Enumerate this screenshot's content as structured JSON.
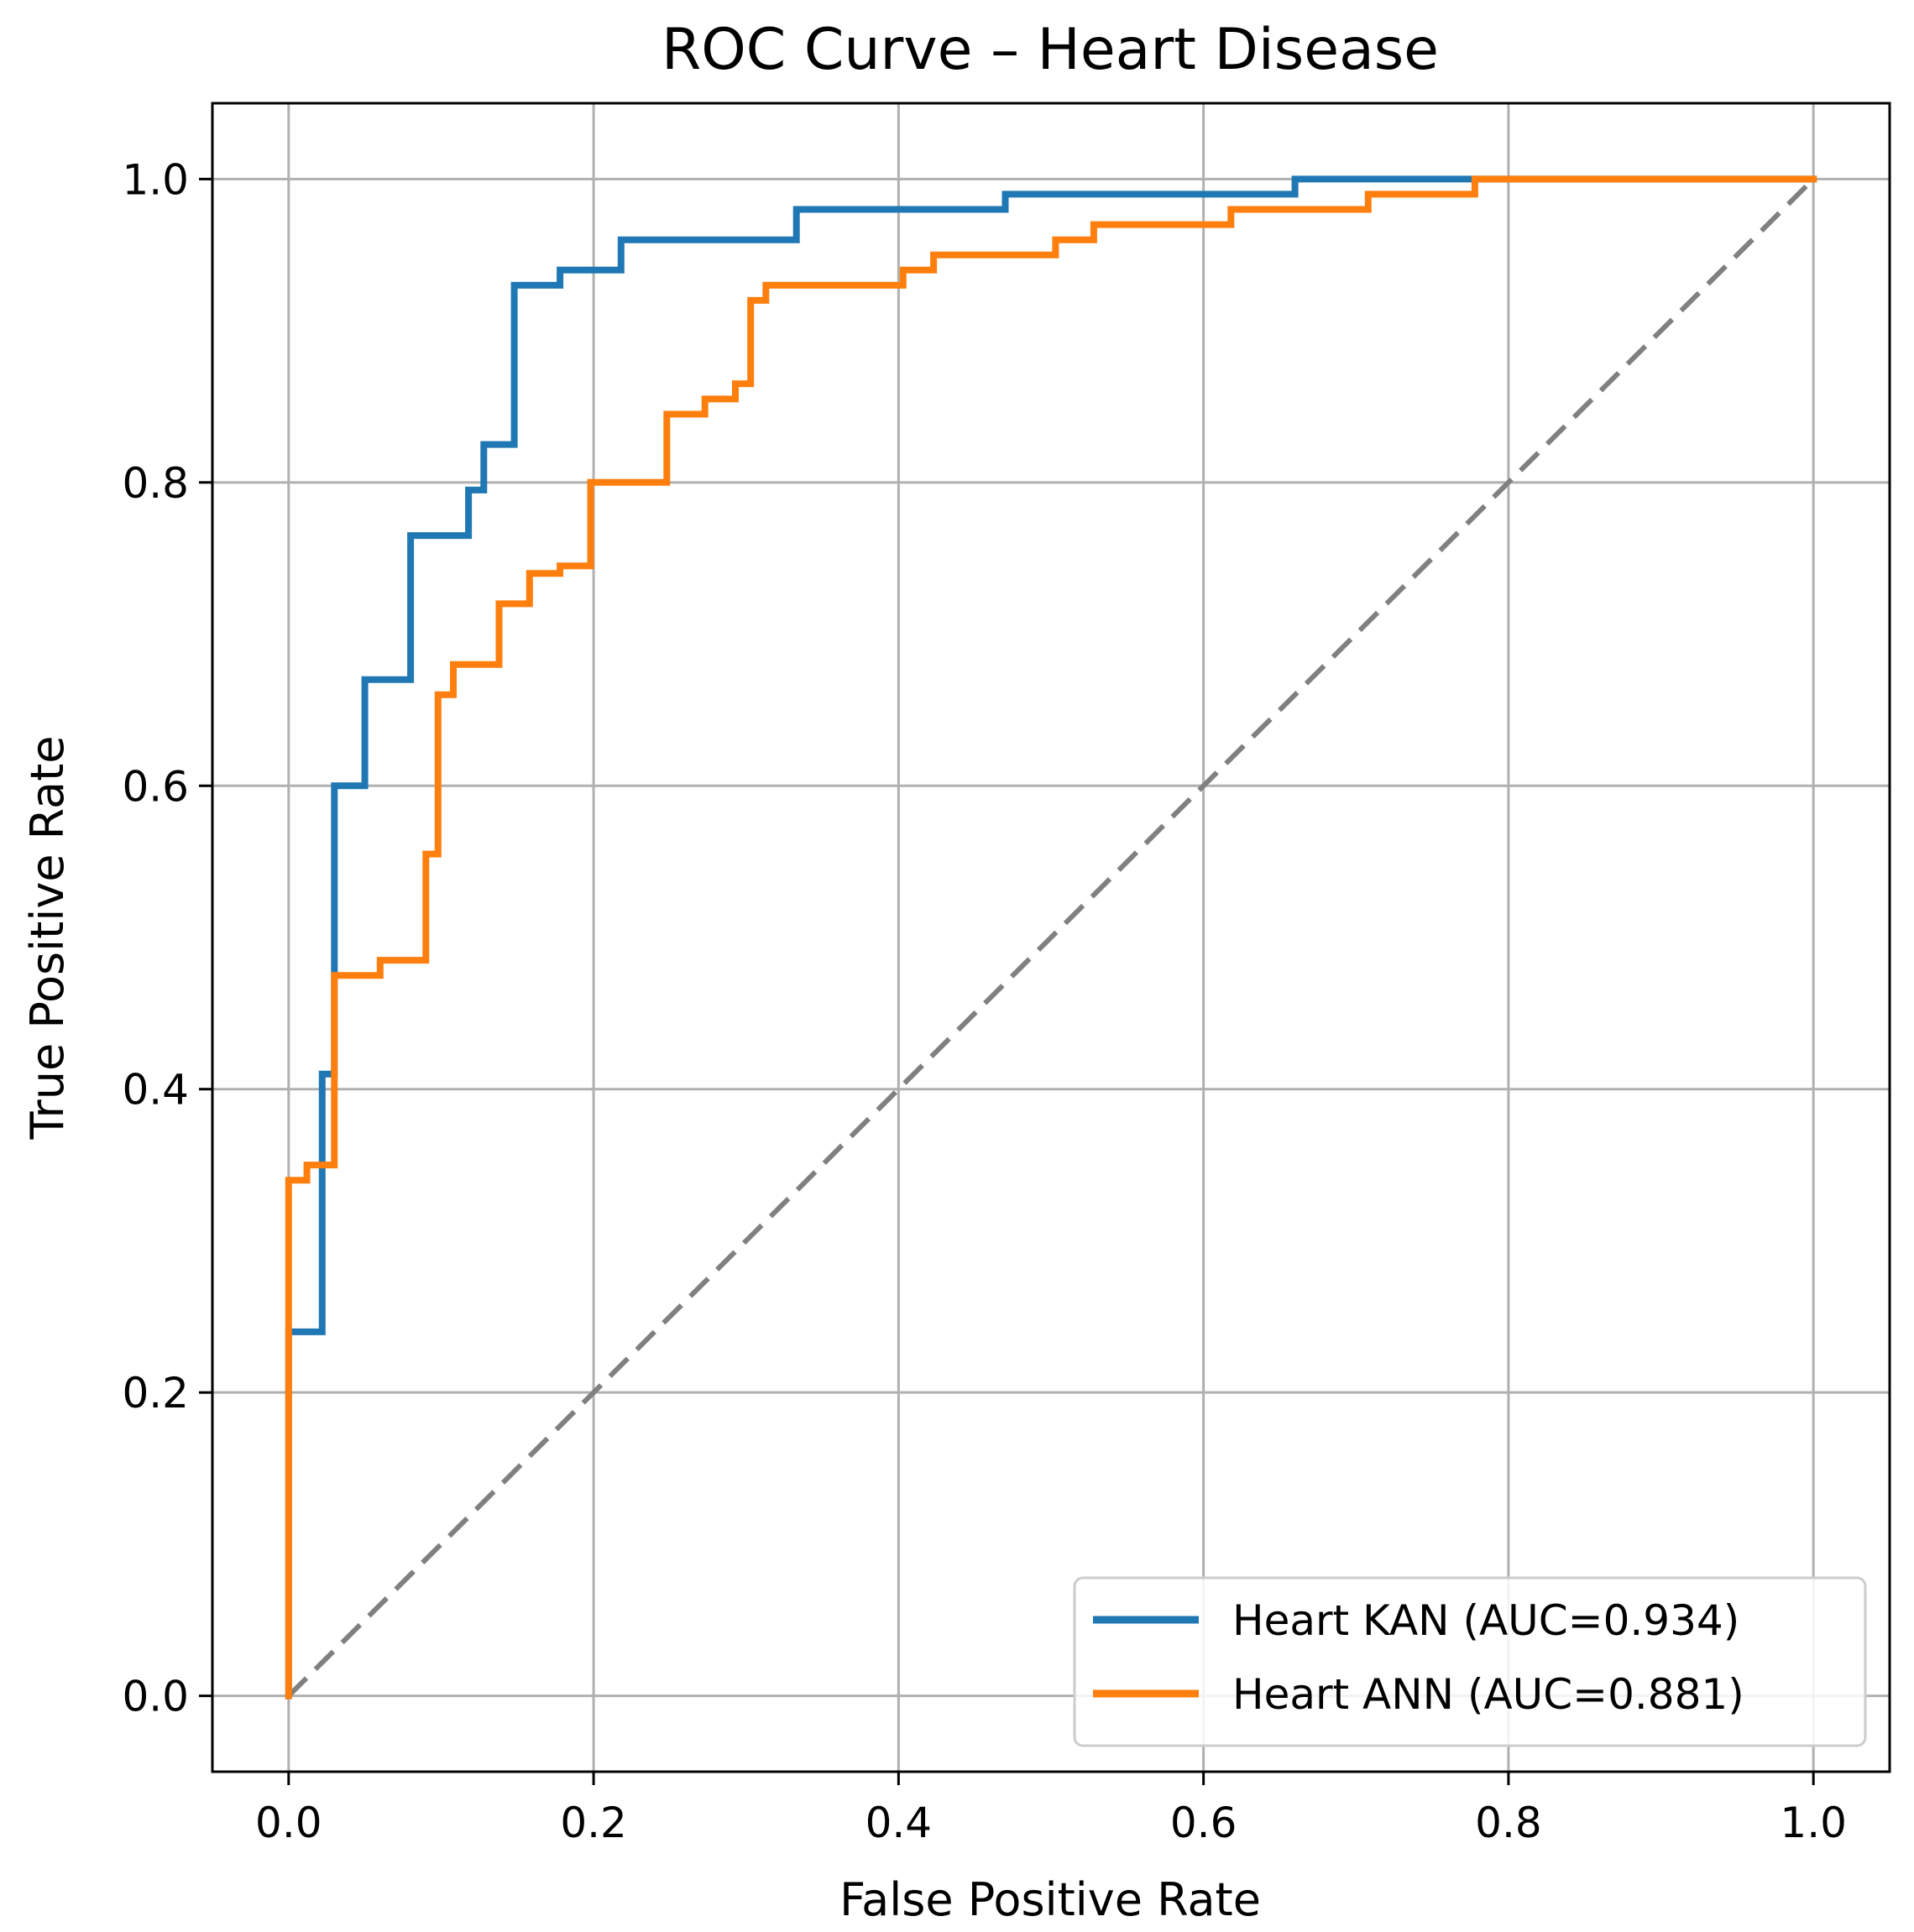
{
  "chart_data": {
    "type": "line",
    "title": "ROC Curve – Heart Disease",
    "xlabel": "False Positive Rate",
    "ylabel": "True Positive Rate",
    "xlim": [
      -0.05,
      1.05
    ],
    "ylim": [
      -0.05,
      1.05
    ],
    "xticks": [
      "0.0",
      "0.2",
      "0.4",
      "0.6",
      "0.8",
      "1.0"
    ],
    "yticks": [
      "0.0",
      "0.2",
      "0.4",
      "0.6",
      "0.8",
      "1.0"
    ],
    "grid": true,
    "legend_position": "lower-right",
    "series": [
      {
        "name": "Heart KAN (AUC=0.934)",
        "color": "#1f77b4",
        "x": [
          0,
          0,
          0.022,
          0.022,
          0.03,
          0.03,
          0.05,
          0.05,
          0.08,
          0.08,
          0.118,
          0.118,
          0.128,
          0.128,
          0.148,
          0.148,
          0.178,
          0.178,
          0.218,
          0.218,
          0.333,
          0.333,
          0.47,
          0.47,
          0.66,
          0.66,
          0.775,
          1.0
        ],
        "y": [
          0,
          0.24,
          0.24,
          0.41,
          0.41,
          0.6,
          0.6,
          0.67,
          0.67,
          0.765,
          0.765,
          0.795,
          0.795,
          0.825,
          0.825,
          0.93,
          0.93,
          0.94,
          0.94,
          0.96,
          0.96,
          0.98,
          0.98,
          0.99,
          0.99,
          1.0,
          1.0,
          1.0
        ]
      },
      {
        "name": "Heart ANN (AUC=0.881)",
        "color": "#ff7f0e",
        "x": [
          0,
          0,
          0.012,
          0.012,
          0.03,
          0.03,
          0.06,
          0.06,
          0.09,
          0.09,
          0.098,
          0.098,
          0.108,
          0.108,
          0.138,
          0.138,
          0.158,
          0.158,
          0.178,
          0.178,
          0.198,
          0.198,
          0.248,
          0.248,
          0.273,
          0.273,
          0.293,
          0.293,
          0.303,
          0.303,
          0.313,
          0.313,
          0.403,
          0.403,
          0.423,
          0.423,
          0.503,
          0.503,
          0.528,
          0.528,
          0.618,
          0.618,
          0.708,
          0.708,
          0.778,
          0.778,
          1.0
        ],
        "y": [
          0,
          0.34,
          0.34,
          0.35,
          0.35,
          0.475,
          0.475,
          0.485,
          0.485,
          0.555,
          0.555,
          0.66,
          0.66,
          0.68,
          0.68,
          0.72,
          0.72,
          0.74,
          0.74,
          0.745,
          0.745,
          0.8,
          0.8,
          0.845,
          0.845,
          0.855,
          0.855,
          0.865,
          0.865,
          0.92,
          0.92,
          0.93,
          0.93,
          0.94,
          0.94,
          0.95,
          0.95,
          0.96,
          0.96,
          0.97,
          0.97,
          0.98,
          0.98,
          0.99,
          0.99,
          1.0,
          1.0
        ]
      }
    ],
    "reference_line": {
      "x": [
        0,
        1
      ],
      "y": [
        0,
        1
      ],
      "color": "#808080"
    }
  }
}
